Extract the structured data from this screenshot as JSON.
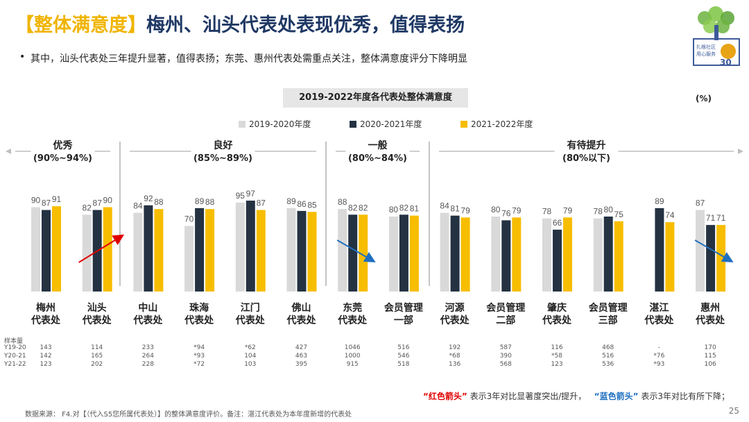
{
  "header": {
    "tag": "【整体满意度】",
    "title": "梅州、汕头代表处表现优秀，值得表扬",
    "bullet": "其中，汕头代表处三年提升显著，值得表扬；东莞、惠州代表处需重点关注，整体满意度评分下降明显"
  },
  "logo": {
    "line1": "扎根社区",
    "line2": "用心服务",
    "number": "30",
    "colors": {
      "tree": "#6cb33e",
      "frame": "#3d5a99",
      "badge": "#e8a317"
    }
  },
  "chart_data": {
    "type": "bar",
    "title": "2019-2022年度各代表处整体满意度",
    "unit": "(%)",
    "categories": [
      [
        "梅州",
        "代表处"
      ],
      [
        "汕头",
        "代表处"
      ],
      [
        "中山",
        "代表处"
      ],
      [
        "珠海",
        "代表处"
      ],
      [
        "江门",
        "代表处"
      ],
      [
        "佛山",
        "代表处"
      ],
      [
        "东莞",
        "代表处"
      ],
      [
        "会员管理",
        "一部"
      ],
      [
        "河源",
        "代表处"
      ],
      [
        "会员管理",
        "二部"
      ],
      [
        "肇庆",
        "代表处"
      ],
      [
        "会员管理",
        "三部"
      ],
      [
        "湛江",
        "代表处"
      ],
      [
        "惠州",
        "代表处"
      ]
    ],
    "series": [
      {
        "name": "2019-2020年度",
        "color": "#d9d9d9",
        "values": [
          90,
          82,
          84,
          70,
          95,
          89,
          88,
          80,
          84,
          80,
          78,
          78,
          null,
          87
        ]
      },
      {
        "name": "2020-2021年度",
        "color": "#243242",
        "values": [
          87,
          87,
          92,
          89,
          97,
          86,
          82,
          82,
          81,
          76,
          66,
          80,
          89,
          71
        ]
      },
      {
        "name": "2021-2022年度",
        "color": "#f7bd00",
        "values": [
          91,
          90,
          88,
          88,
          87,
          85,
          82,
          81,
          79,
          79,
          79,
          75,
          74,
          71
        ]
      }
    ],
    "groups": [
      {
        "name": "优秀",
        "range": "(90%~94%)",
        "from": 0,
        "to": 1
      },
      {
        "name": "良好",
        "range": "(85%~89%)",
        "from": 2,
        "to": 5
      },
      {
        "name": "一般",
        "range": "(80%~84%)",
        "from": 6,
        "to": 7
      },
      {
        "name": "有待提升",
        "range": "(80%以下)",
        "from": 8,
        "to": 13
      }
    ],
    "arrows": [
      {
        "color": "red",
        "category_index": 1
      },
      {
        "color": "blue",
        "category_index": 6
      },
      {
        "color": "blue",
        "category_index": 13
      }
    ]
  },
  "samples": {
    "label": "样本量",
    "rows": [
      {
        "label": "Y19-20",
        "values": [
          "143",
          "114",
          "233",
          "*94",
          "*62",
          "427",
          "1046",
          "516",
          "192",
          "587",
          "116",
          "468",
          "-",
          "170"
        ]
      },
      {
        "label": "Y20-21",
        "values": [
          "142",
          "165",
          "264",
          "*93",
          "104",
          "463",
          "1000",
          "546",
          "*68",
          "390",
          "*58",
          "516",
          "*76",
          "115"
        ]
      },
      {
        "label": "Y21-22",
        "values": [
          "123",
          "202",
          "228",
          "*72",
          "103",
          "395",
          "915",
          "518",
          "136",
          "568",
          "123",
          "536",
          "*93",
          "106"
        ]
      }
    ]
  },
  "note": {
    "q1": "“",
    "red": "红色箭头",
    "q2": "”",
    "red_text": "表示3年对比显著度突出/提升，",
    "q3": "“",
    "blue": "蓝色箭头",
    "q4": "”",
    "blue_text": "表示3年对比有所下降；"
  },
  "source": "数据来源：  F4.对【（代入S5您所属代表处）】的整体满意度评价。备注：湛江代表处为本年度新增的代表处",
  "page_number": "25"
}
